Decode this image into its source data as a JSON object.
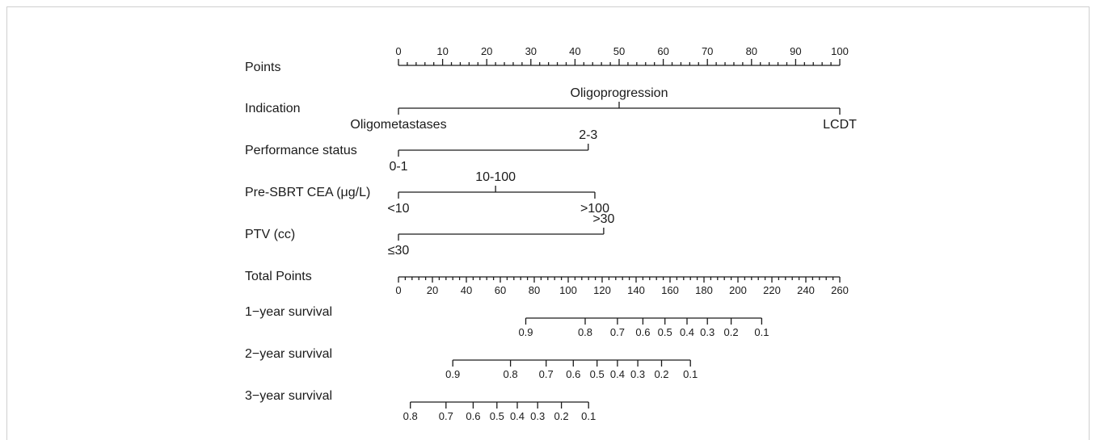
{
  "chart_data": {
    "type": "nomogram",
    "title": "",
    "points_axis": {
      "label": "Points",
      "min": 0,
      "max": 100,
      "major_ticks": [
        0,
        10,
        20,
        30,
        40,
        50,
        60,
        70,
        80,
        90,
        100
      ],
      "minor_step": 2
    },
    "predictors": [
      {
        "label": "Indication",
        "levels": [
          {
            "name": "Oligometastases",
            "points": 0,
            "side": "below"
          },
          {
            "name": "Oligoprogression",
            "points": 50,
            "side": "above"
          },
          {
            "name": "LCDT",
            "points": 100,
            "side": "below"
          }
        ]
      },
      {
        "label": "Performance status",
        "levels": [
          {
            "name": "0-1",
            "points": 0,
            "side": "below"
          },
          {
            "name": "2-3",
            "points": 43,
            "side": "above"
          }
        ]
      },
      {
        "label": "Pre-SBRT CEA (μg/L)",
        "levels": [
          {
            "name": "<10",
            "points": 0,
            "side": "below"
          },
          {
            "name": "10-100",
            "points": 22,
            "side": "above"
          },
          {
            "name": ">100",
            "points": 44.5,
            "side": "below"
          }
        ]
      },
      {
        "label": "PTV (cc)",
        "levels": [
          {
            "name": "≤30",
            "points": 0,
            "side": "below"
          },
          {
            "name": ">30",
            "points": 46.5,
            "side": "above"
          }
        ]
      }
    ],
    "total_points_axis": {
      "label": "Total Points",
      "min": 0,
      "max": 260,
      "major_ticks": [
        0,
        20,
        40,
        60,
        80,
        100,
        120,
        140,
        160,
        180,
        200,
        220,
        240,
        260
      ],
      "minor_step": 4
    },
    "survival_axes": [
      {
        "label": "1−year survival",
        "ticks": [
          {
            "label": "0.9",
            "total_points": 75
          },
          {
            "label": "0.8",
            "total_points": 110
          },
          {
            "label": "0.7",
            "total_points": 129
          },
          {
            "label": "0.6",
            "total_points": 144
          },
          {
            "label": "0.5",
            "total_points": 157
          },
          {
            "label": "0.4",
            "total_points": 170
          },
          {
            "label": "0.3",
            "total_points": 182
          },
          {
            "label": "0.2",
            "total_points": 196
          },
          {
            "label": "0.1",
            "total_points": 214
          }
        ]
      },
      {
        "label": "2−year survival",
        "ticks": [
          {
            "label": "0.9",
            "total_points": 32
          },
          {
            "label": "0.8",
            "total_points": 66
          },
          {
            "label": "0.7",
            "total_points": 87
          },
          {
            "label": "0.6",
            "total_points": 103
          },
          {
            "label": "0.5",
            "total_points": 117
          },
          {
            "label": "0.4",
            "total_points": 129
          },
          {
            "label": "0.3",
            "total_points": 141
          },
          {
            "label": "0.2",
            "total_points": 155
          },
          {
            "label": "0.1",
            "total_points": 172
          }
        ]
      },
      {
        "label": "3−year survival",
        "ticks": [
          {
            "label": "0.8",
            "total_points": 7
          },
          {
            "label": "0.7",
            "total_points": 28
          },
          {
            "label": "0.6",
            "total_points": 44
          },
          {
            "label": "0.5",
            "total_points": 58
          },
          {
            "label": "0.4",
            "total_points": 70
          },
          {
            "label": "0.3",
            "total_points": 82
          },
          {
            "label": "0.2",
            "total_points": 96
          },
          {
            "label": "0.1",
            "total_points": 112
          }
        ]
      }
    ]
  }
}
